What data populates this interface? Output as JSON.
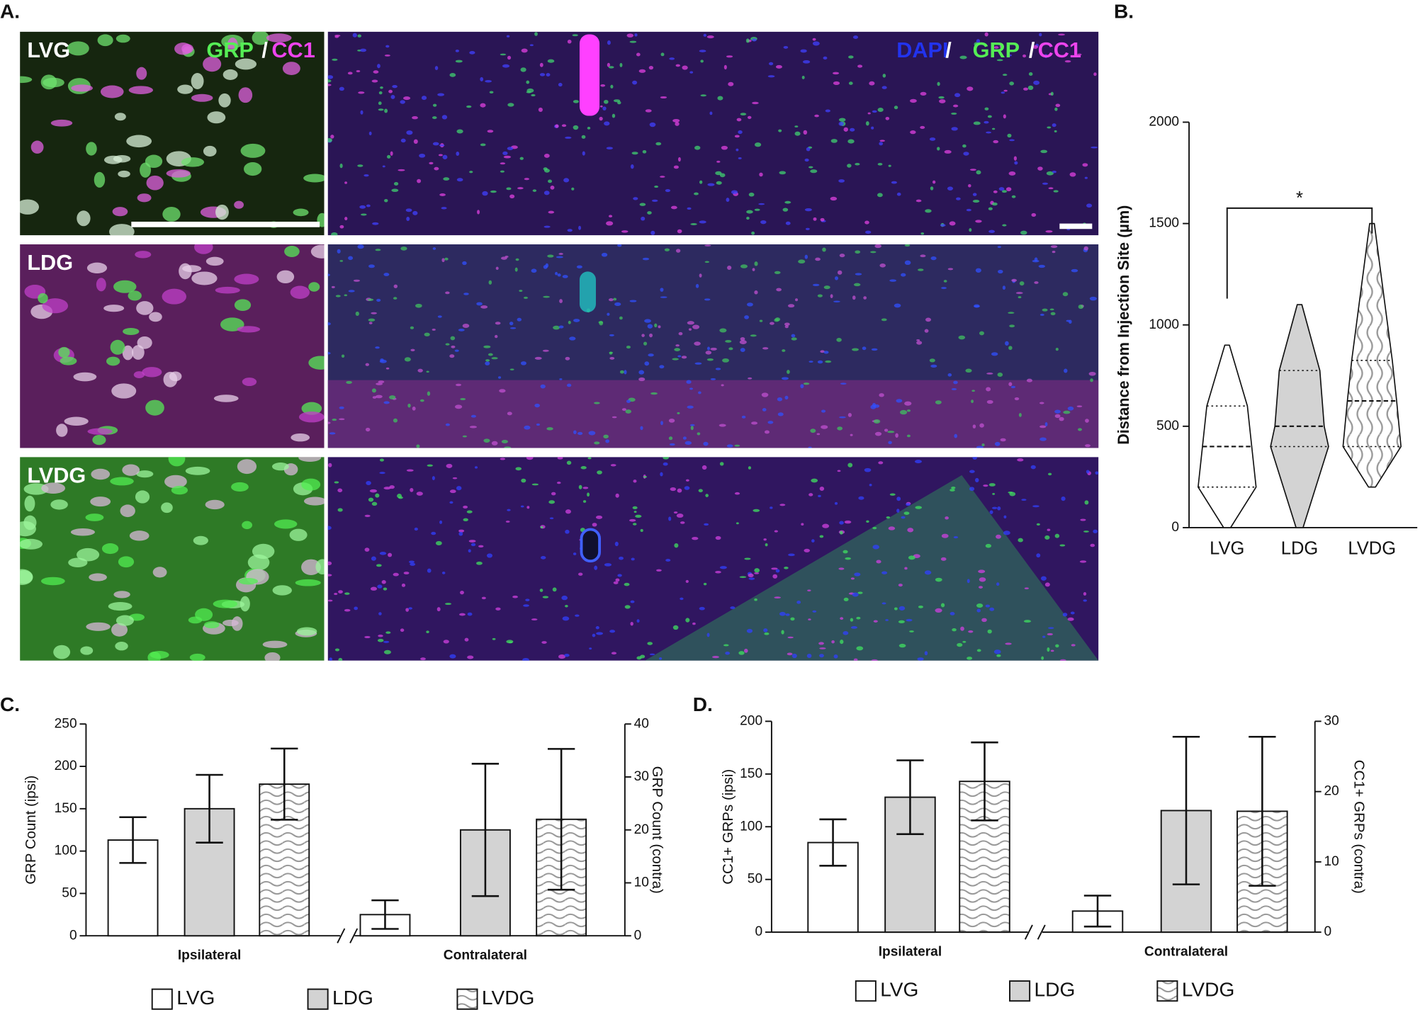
{
  "panel_labels": [
    "A.",
    "B.",
    "C.",
    "D."
  ],
  "figure_a": {
    "row_labels": [
      "LVG",
      "LDG",
      "LVDG"
    ],
    "left_stains": [
      "GRP",
      "/",
      "CC1"
    ],
    "right_stains": [
      "DAPI",
      "/",
      "GRP",
      "/",
      "CC1"
    ]
  },
  "chart_data": [
    {
      "type": "violin",
      "ylabel": "Distance from Injection Site (µm)",
      "categories": [
        "LVG",
        "LDG",
        "LVDG"
      ],
      "fills": [
        "#ffffff",
        "#d3d3d3",
        "wave"
      ],
      "stats": [
        {
          "min": 0,
          "q1": 200,
          "median": 400,
          "q3": 600,
          "max": 900
        },
        {
          "min": 0,
          "q1": 400,
          "median": 500,
          "q3": 775,
          "max": 1100
        },
        {
          "min": 200,
          "q1": 400,
          "median": 625,
          "q3": 825,
          "max": 1500
        }
      ],
      "ylim": [
        0,
        2000
      ],
      "yticks": [
        0,
        500,
        1000,
        1500,
        2000
      ],
      "annotations": [
        {
          "text": "*",
          "between": [
            "LVG",
            "LVDG"
          ]
        }
      ]
    },
    {
      "type": "grouped-bar",
      "ylabel": "GRP Count (ipsi)",
      "y2label": "GRP Count (contra)",
      "categories": [
        "LVG",
        "LDG",
        "LVDG"
      ],
      "fills": [
        "#ffffff",
        "#d3d3d3",
        "wave"
      ],
      "series": [
        {
          "name": "Ipsilateral",
          "axis": "y",
          "values": [
            113,
            150,
            179
          ],
          "errors": [
            27,
            40,
            42
          ]
        },
        {
          "name": "Contralateral",
          "axis": "y2",
          "values": [
            4,
            20,
            22
          ],
          "errors": [
            2.7,
            12.5,
            13.3
          ]
        }
      ],
      "ylim": [
        0,
        250
      ],
      "yticks": [
        0,
        50,
        100,
        150,
        200,
        250
      ],
      "y2lim": [
        0,
        40
      ],
      "y2ticks": [
        0,
        10,
        20,
        30,
        40
      ]
    },
    {
      "type": "grouped-bar",
      "ylabel": "CC1+ GRPs (ipsi)",
      "y2label": "CC1+ GRPs (contra)",
      "categories": [
        "LVG",
        "LDG",
        "LVDG"
      ],
      "fills": [
        "#ffffff",
        "#d3d3d3",
        "wave"
      ],
      "series": [
        {
          "name": "Ipsilateral",
          "axis": "y",
          "values": [
            85,
            128,
            143
          ],
          "errors": [
            22,
            35,
            37
          ]
        },
        {
          "name": "Contralateral",
          "axis": "y2",
          "values": [
            3,
            17.3,
            17.2
          ],
          "errors": [
            2.2,
            10.5,
            10.6
          ]
        }
      ],
      "ylim": [
        0,
        200
      ],
      "yticks": [
        0,
        50,
        100,
        150,
        200
      ],
      "y2lim": [
        0,
        30
      ],
      "y2ticks": [
        0,
        10,
        20,
        30
      ]
    }
  ]
}
